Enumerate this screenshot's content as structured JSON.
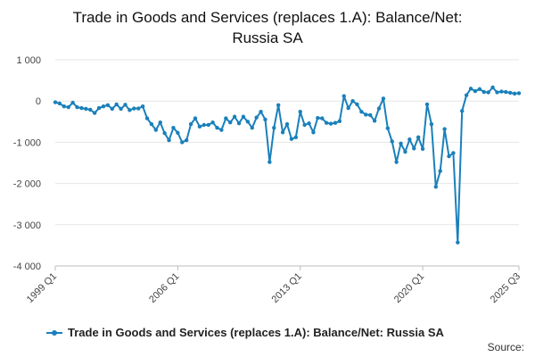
{
  "title_line1": "Trade in Goods and Services (replaces 1.A): Balance/Net:",
  "title_line2": "Russia SA",
  "source_label": "Source:",
  "chart_data": {
    "type": "line",
    "title": "Trade in Goods and Services (replaces 1.A): Balance/Net: Russia SA",
    "xlabel": "",
    "ylabel": "",
    "ylim": [
      -4000,
      1000
    ],
    "yticks": [
      1000,
      0,
      -1000,
      -2000,
      -3000,
      -4000
    ],
    "ytick_labels": [
      "1 000",
      "0",
      "-1 000",
      "-2 000",
      "-3 000",
      "-4 000"
    ],
    "xtick_labels": [
      "1999 Q1",
      "2006 Q1",
      "2013 Q1",
      "2020 Q1",
      "2025 Q3"
    ],
    "xtick_indices": [
      0,
      28,
      56,
      84,
      106
    ],
    "grid": true,
    "legend_position": "bottom",
    "color": "#1a80bb",
    "series": [
      {
        "name": "Trade in Goods and Services (replaces 1.A): Balance/Net: Russia SA",
        "values": [
          -30,
          -60,
          -130,
          -150,
          -40,
          -150,
          -170,
          -190,
          -210,
          -290,
          -170,
          -130,
          -100,
          -190,
          -80,
          -190,
          -90,
          -220,
          -180,
          -180,
          -130,
          -420,
          -560,
          -700,
          -520,
          -780,
          -950,
          -650,
          -770,
          -1000,
          -950,
          -560,
          -420,
          -620,
          -580,
          -580,
          -520,
          -650,
          -700,
          -420,
          -520,
          -380,
          -540,
          -380,
          -500,
          -650,
          -400,
          -260,
          -450,
          -1480,
          -650,
          -100,
          -760,
          -560,
          -920,
          -880,
          -260,
          -580,
          -540,
          -760,
          -410,
          -420,
          -530,
          -550,
          -530,
          -490,
          120,
          -170,
          0,
          -80,
          -260,
          -330,
          -340,
          -480,
          -180,
          60,
          -660,
          -980,
          -1480,
          -1030,
          -1230,
          -930,
          -1150,
          -880,
          -1160,
          -80,
          -560,
          -2080,
          -1700,
          -680,
          -1340,
          -1260,
          -3430,
          -240,
          140,
          300,
          240,
          290,
          220,
          210,
          330,
          210,
          230,
          220,
          200,
          180,
          190
        ]
      }
    ]
  }
}
